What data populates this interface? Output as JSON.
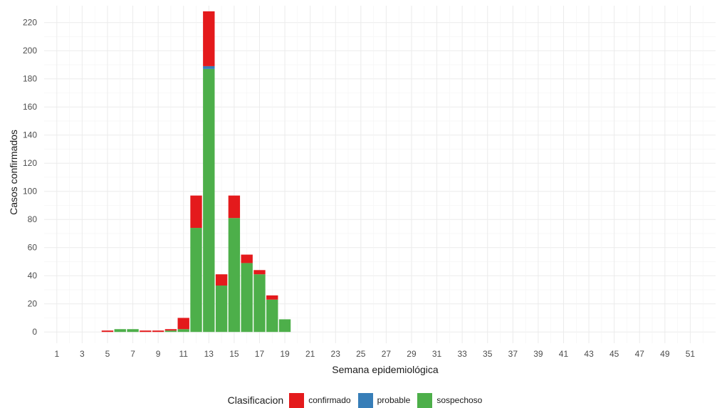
{
  "chart_data": {
    "type": "bar",
    "stacked": true,
    "xlabel": "Semana epidemiológica",
    "ylabel": "Casos confirmados",
    "xlim": [
      0,
      53
    ],
    "ylim": [
      -8,
      232
    ],
    "y_ticks": [
      0,
      20,
      40,
      60,
      80,
      100,
      120,
      140,
      160,
      180,
      200,
      220
    ],
    "x_ticks": [
      1,
      3,
      5,
      7,
      9,
      11,
      13,
      15,
      17,
      19,
      21,
      23,
      25,
      27,
      29,
      31,
      33,
      35,
      37,
      39,
      41,
      43,
      45,
      47,
      49,
      51
    ],
    "grid": true,
    "legend_position": "bottom",
    "x": [
      5,
      6,
      7,
      8,
      9,
      10,
      11,
      12,
      13,
      14,
      15,
      16,
      17,
      18,
      19
    ],
    "series": [
      {
        "name": "sospechoso",
        "color": "#4DAF4A",
        "values": [
          0,
          2,
          2,
          0,
          0,
          1,
          2,
          74,
          187,
          33,
          81,
          49,
          41,
          23,
          9
        ]
      },
      {
        "name": "probable",
        "color": "#377EB8",
        "values": [
          0,
          0,
          0,
          0,
          0,
          0,
          0,
          0,
          2,
          0,
          0,
          0,
          0,
          0,
          0
        ]
      },
      {
        "name": "confirmado",
        "color": "#E41A1C",
        "values": [
          1,
          0,
          0,
          1,
          1,
          1,
          8,
          23,
          39,
          8,
          16,
          6,
          3,
          3,
          0
        ]
      }
    ]
  },
  "legend": {
    "title": "Clasificacion",
    "items": [
      {
        "label": "confirmado",
        "color": "#E41A1C"
      },
      {
        "label": "probable",
        "color": "#377EB8"
      },
      {
        "label": "sospechoso",
        "color": "#4DAF4A"
      }
    ]
  }
}
